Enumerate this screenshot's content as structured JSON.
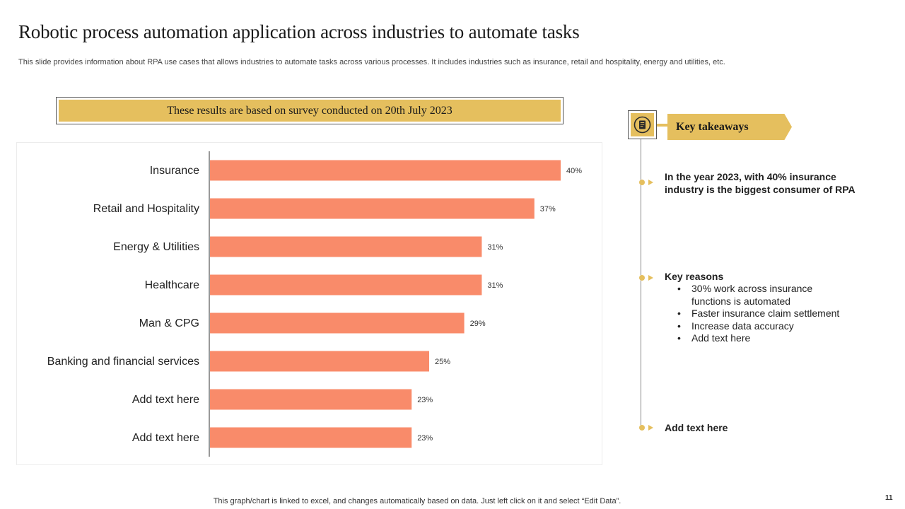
{
  "slide": {
    "title": "Robotic process automation application across industries to automate tasks",
    "subtitle": "This slide provides information about RPA use cases that allows industries to automate tasks across various processes. It includes industries such as insurance, retail and hospitality, energy and utilities, etc.",
    "survey_note": "These results are based on survey conducted on 20th July 2023",
    "footer": "This graph/chart is linked to excel,  and changes automatically based on data. Just left click on it and select “Edit Data”.",
    "page_number": "11"
  },
  "colors": {
    "bar": "#f98b6a",
    "accent": "#e5bf5e",
    "axis": "#333333"
  },
  "chart_data": {
    "type": "bar",
    "orientation": "horizontal",
    "categories": [
      "Insurance",
      "Retail and Hospitality",
      "Energy & Utilities",
      "Healthcare",
      "Man & CPG",
      "Banking and financial services",
      "Add text here",
      "Add text here"
    ],
    "values": [
      40,
      37,
      31,
      31,
      29,
      25,
      23,
      23
    ],
    "value_labels": [
      "40%",
      "37%",
      "31%",
      "31%",
      "29%",
      "25%",
      "23%",
      "23%"
    ],
    "unit": "%",
    "xlim": [
      0,
      45
    ],
    "grid": false,
    "legend": "none"
  },
  "takeaways": {
    "heading": "Key takeaways",
    "icon": "document-icon",
    "items": [
      {
        "text": "In the year 2023, with 40% insurance industry is the biggest consumer of RPA"
      },
      {
        "title": "Key reasons",
        "bullets": [
          "30% work across insurance functions is automated",
          "Faster insurance claim settlement",
          "Increase data accuracy",
          "Add text here"
        ]
      },
      {
        "text": "Add  text here"
      }
    ]
  }
}
